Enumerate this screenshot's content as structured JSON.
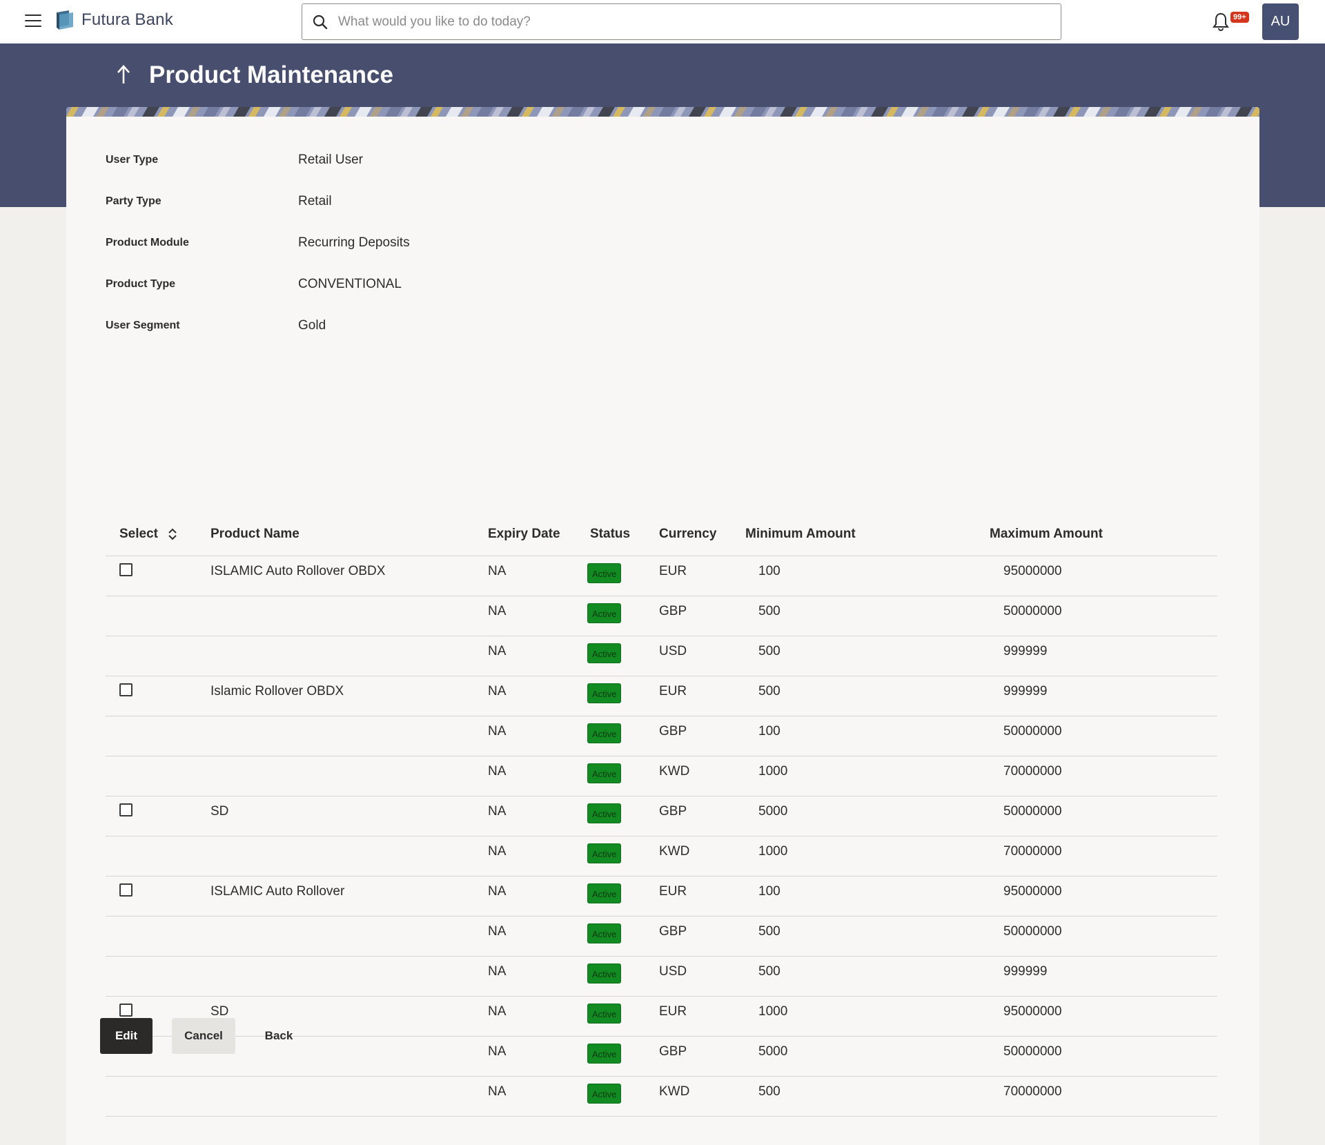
{
  "app": {
    "brand_name": "Futura Bank",
    "search_placeholder": "What would you like to do today?",
    "notification_badge": "99+",
    "avatar_initials": "AU"
  },
  "page": {
    "title": "Product Maintenance"
  },
  "details": [
    {
      "label": "User Type",
      "value": "Retail User"
    },
    {
      "label": "Party Type",
      "value": "Retail"
    },
    {
      "label": "Product Module",
      "value": "Recurring Deposits"
    },
    {
      "label": "Product Type",
      "value": "CONVENTIONAL"
    },
    {
      "label": "User Segment",
      "value": "Gold"
    }
  ],
  "table": {
    "headers": {
      "select": "Select",
      "product_name": "Product Name",
      "expiry_date": "Expiry Date",
      "status": "Status",
      "currency": "Currency",
      "minimum_amount": "Minimum Amount",
      "maximum_amount": "Maximum Amount"
    },
    "rows": [
      {
        "checkbox": true,
        "name": "ISLAMIC Auto Rollover OBDX",
        "expiry": "NA",
        "status": "Active",
        "currency": "EUR",
        "min": "100",
        "max": "95000000"
      },
      {
        "checkbox": false,
        "name": "",
        "expiry": "NA",
        "status": "Active",
        "currency": "GBP",
        "min": "500",
        "max": "50000000"
      },
      {
        "checkbox": false,
        "name": "",
        "expiry": "NA",
        "status": "Active",
        "currency": "USD",
        "min": "500",
        "max": "999999"
      },
      {
        "checkbox": true,
        "name": "Islamic Rollover OBDX",
        "expiry": "NA",
        "status": "Active",
        "currency": "EUR",
        "min": "500",
        "max": "999999"
      },
      {
        "checkbox": false,
        "name": "",
        "expiry": "NA",
        "status": "Active",
        "currency": "GBP",
        "min": "100",
        "max": "50000000"
      },
      {
        "checkbox": false,
        "name": "",
        "expiry": "NA",
        "status": "Active",
        "currency": "KWD",
        "min": "1000",
        "max": "70000000"
      },
      {
        "checkbox": true,
        "name": "SD",
        "expiry": "NA",
        "status": "Active",
        "currency": "GBP",
        "min": "5000",
        "max": "50000000"
      },
      {
        "checkbox": false,
        "name": "",
        "expiry": "NA",
        "status": "Active",
        "currency": "KWD",
        "min": "1000",
        "max": "70000000"
      },
      {
        "checkbox": true,
        "name": "ISLAMIC Auto Rollover",
        "expiry": "NA",
        "status": "Active",
        "currency": "EUR",
        "min": "100",
        "max": "95000000"
      },
      {
        "checkbox": false,
        "name": "",
        "expiry": "NA",
        "status": "Active",
        "currency": "GBP",
        "min": "500",
        "max": "50000000"
      },
      {
        "checkbox": false,
        "name": "",
        "expiry": "NA",
        "status": "Active",
        "currency": "USD",
        "min": "500",
        "max": "999999"
      },
      {
        "checkbox": true,
        "name": "SD",
        "expiry": "NA",
        "status": "Active",
        "currency": "EUR",
        "min": "1000",
        "max": "95000000"
      },
      {
        "checkbox": false,
        "name": "",
        "expiry": "NA",
        "status": "Active",
        "currency": "GBP",
        "min": "5000",
        "max": "50000000"
      },
      {
        "checkbox": false,
        "name": "",
        "expiry": "NA",
        "status": "Active",
        "currency": "KWD",
        "min": "500",
        "max": "70000000"
      }
    ]
  },
  "buttons": {
    "edit": "Edit",
    "cancel": "Cancel",
    "back": "Back"
  },
  "colors": {
    "header_bg": "#ffffff",
    "banner_bg": "#474e6e",
    "status_active": "#118b22",
    "primary_button": "#2c2a28"
  },
  "icons": {
    "menu": "hamburger-menu-icon",
    "logo": "futura-bank-logo-icon",
    "search": "search-icon",
    "notifications": "bell-icon",
    "back": "arrow-up-icon",
    "sort": "sort-icon",
    "checkbox": "checkbox-icon"
  }
}
